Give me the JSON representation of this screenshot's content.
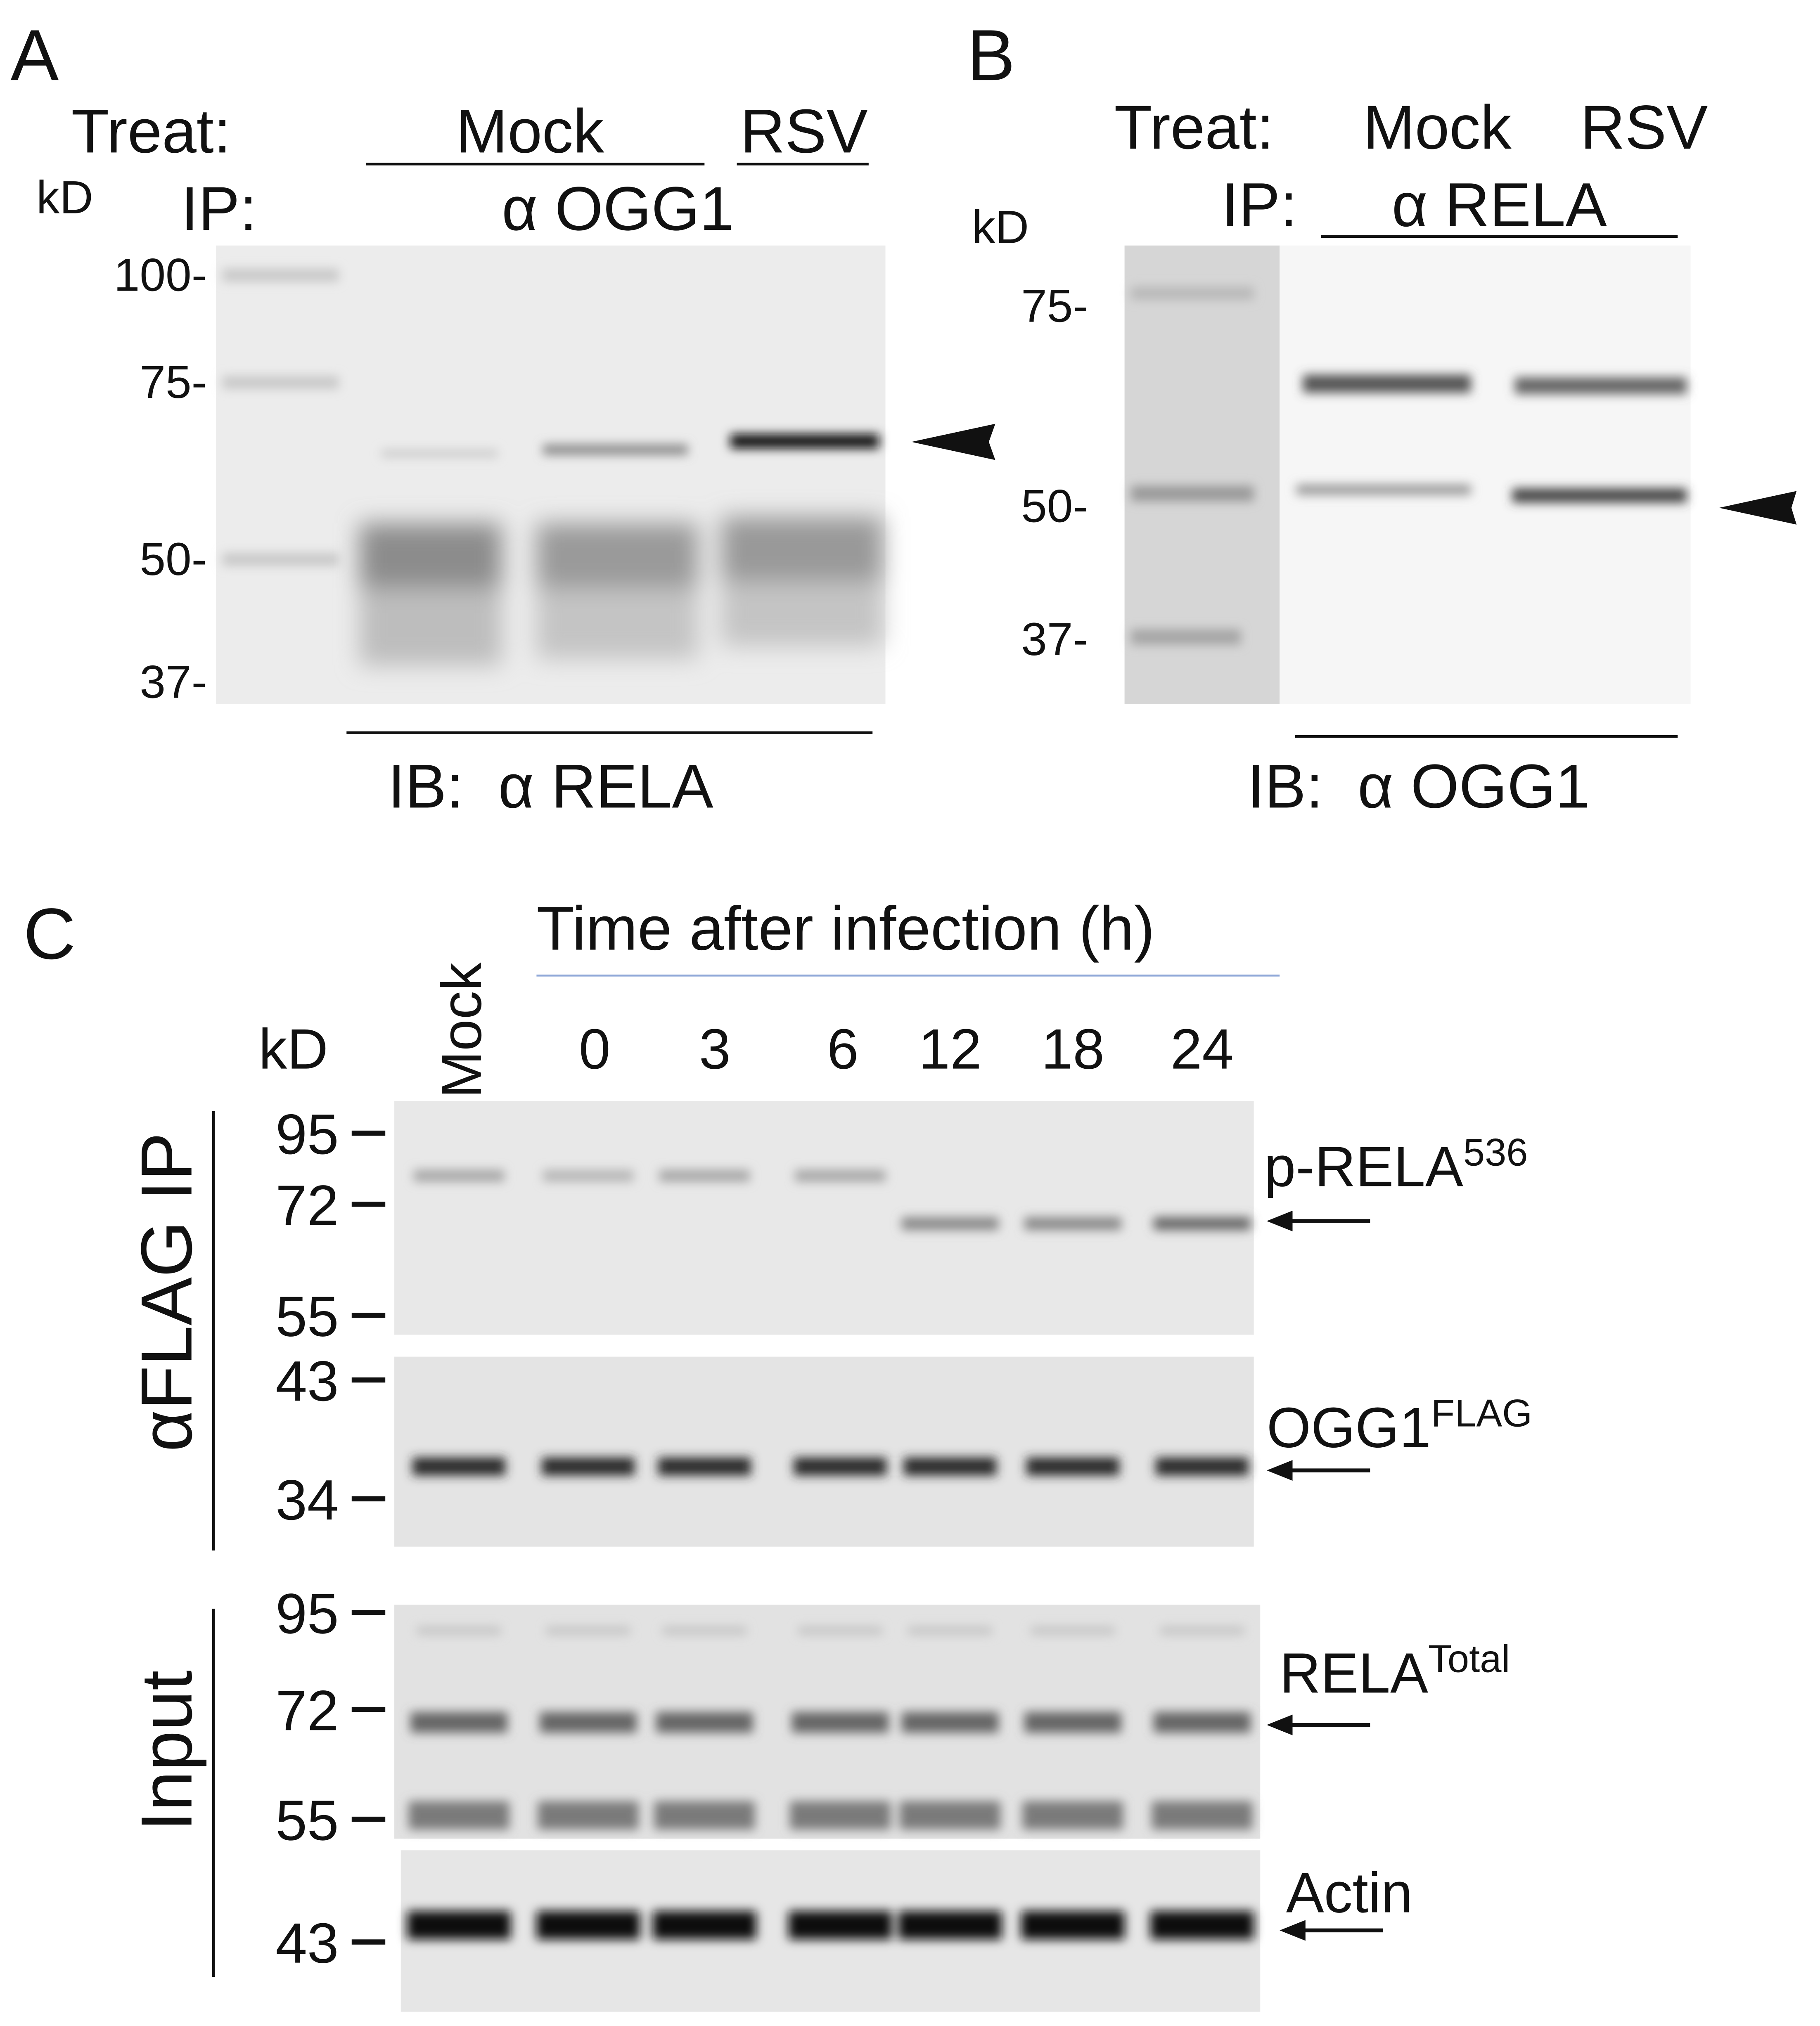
{
  "panel_a": {
    "label": "A",
    "treat_label": "Treat:",
    "groups": [
      "Mock",
      "RSV"
    ],
    "kd_label": "kD",
    "ip_label": "IP:",
    "ip": "α OGG1",
    "markers": [
      "100-",
      "75-",
      "50-",
      "37-"
    ],
    "ib": "IB:  α RELA"
  },
  "panel_b": {
    "label": "B",
    "treat_label": "Treat:",
    "groups": [
      "Mock",
      "RSV"
    ],
    "kd_label": "kD",
    "ip_label": "IP:",
    "ip": "α RELA",
    "markers": [
      "75-",
      "50-",
      "37-"
    ],
    "ib": "IB:  α OGG1"
  },
  "panel_c": {
    "label": "C",
    "mock_lane": "Mock",
    "time_title": "Time after infection (h)",
    "kd_label": "kD",
    "times": [
      "0",
      "3",
      "6",
      "12",
      "18",
      "24"
    ],
    "ip_label": "αFLAG IP",
    "input_label": "Input",
    "blots": [
      {
        "markers": [
          "95",
          "72",
          "55"
        ],
        "label": "p-RELA",
        "sup": "536"
      },
      {
        "markers": [
          "43",
          "34"
        ],
        "label": "OGG1",
        "sup": "FLAG"
      },
      {
        "markers": [
          "95",
          "72",
          "55"
        ],
        "label": "RELA",
        "sup": "Total"
      },
      {
        "markers": [
          "43"
        ],
        "label": "Actin"
      }
    ]
  }
}
